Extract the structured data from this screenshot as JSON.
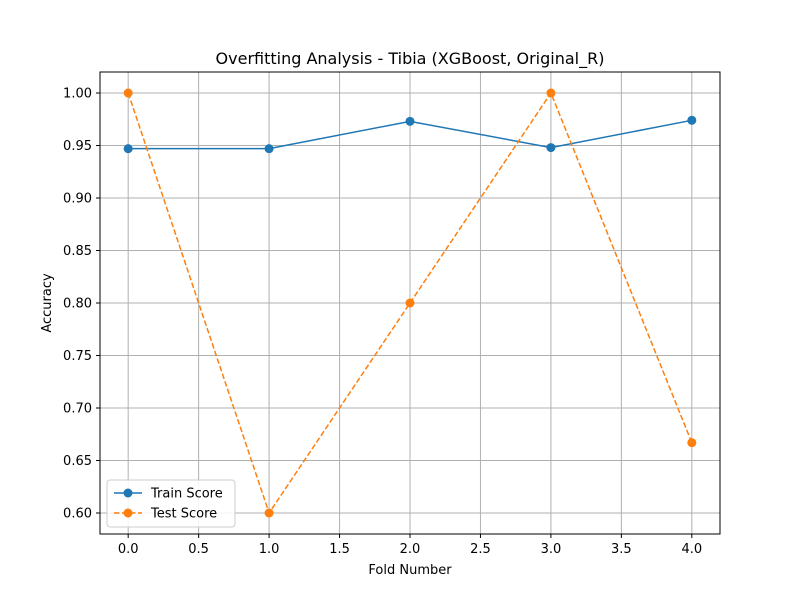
{
  "chart_data": {
    "type": "line",
    "title": "Overfitting Analysis - Tibia (XGBoost, Original_R)",
    "xlabel": "Fold Number",
    "ylabel": "Accuracy",
    "xlim": [
      -0.2,
      4.2
    ],
    "ylim": [
      0.58,
      1.02
    ],
    "xticks": [
      "0.0",
      "0.5",
      "1.0",
      "1.5",
      "2.0",
      "2.5",
      "3.0",
      "3.5",
      "4.0"
    ],
    "yticks": [
      "0.60",
      "0.65",
      "0.70",
      "0.75",
      "0.80",
      "0.85",
      "0.90",
      "0.95",
      "1.00"
    ],
    "grid": true,
    "legend_position": "lower-left",
    "x": [
      0,
      1,
      2,
      3,
      4
    ],
    "series": [
      {
        "name": "Train Score",
        "values": [
          0.947,
          0.947,
          0.973,
          0.948,
          0.974
        ],
        "color": "#1f77b4",
        "linestyle": "solid",
        "marker": "circle"
      },
      {
        "name": "Test Score",
        "values": [
          1.0,
          0.6,
          0.8,
          1.0,
          0.667
        ],
        "color": "#ff7f0e",
        "linestyle": "dashed",
        "marker": "circle"
      }
    ]
  }
}
